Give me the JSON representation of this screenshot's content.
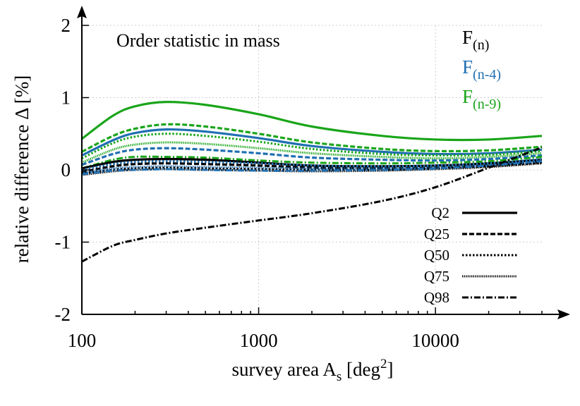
{
  "chart_data": {
    "type": "line",
    "title": "",
    "annotation": "Order statistic in mass",
    "xlabel": {
      "text": "survey area A",
      "sub": "s",
      "tail": " [deg",
      "sup": "2",
      "end": "]"
    },
    "ylabel": "relative difference Δ [%]",
    "xscale": "log",
    "xlim": [
      100,
      40000
    ],
    "ylim": [
      -2,
      2
    ],
    "x_ticks": [
      {
        "value": 100,
        "label": "100"
      },
      {
        "value": 1000,
        "label": "1000"
      },
      {
        "value": 10000,
        "label": "10000"
      }
    ],
    "y_ticks": [
      {
        "value": -2,
        "label": "-2"
      },
      {
        "value": -1,
        "label": "-1"
      },
      {
        "value": 0,
        "label": "0"
      },
      {
        "value": 1,
        "label": "1"
      },
      {
        "value": 2,
        "label": "2"
      }
    ],
    "grid": true,
    "colors": {
      "F(n)": "#000000",
      "F(n-4)": "#1f6fb2",
      "F(n-9)": "#1aa51a"
    },
    "color_legend": [
      {
        "base": "F",
        "sub": "(n)",
        "color": "#000000"
      },
      {
        "base": "F",
        "sub": "(n-4)",
        "color": "#1f6fb2"
      },
      {
        "base": "F",
        "sub": "(n-9)",
        "color": "#1aa51a"
      }
    ],
    "style_legend": [
      {
        "label": "Q2",
        "dash": "solid"
      },
      {
        "label": "Q25",
        "dash": "dashed"
      },
      {
        "label": "Q50",
        "dash": "dotted"
      },
      {
        "label": "Q75",
        "dash": "fine-dotted"
      },
      {
        "label": "Q98",
        "dash": "dashdot"
      }
    ],
    "x": [
      100,
      150,
      200,
      300,
      500,
      1000,
      2000,
      5000,
      10000,
      20000,
      40000
    ],
    "series": [
      {
        "color_key": "F(n-9)",
        "style": "solid",
        "values": [
          0.43,
          0.75,
          0.88,
          0.94,
          0.9,
          0.77,
          0.6,
          0.47,
          0.42,
          0.42,
          0.47
        ]
      },
      {
        "color_key": "F(n-9)",
        "style": "dashed",
        "values": [
          0.25,
          0.47,
          0.57,
          0.63,
          0.6,
          0.5,
          0.38,
          0.29,
          0.26,
          0.27,
          0.32
        ]
      },
      {
        "color_key": "F(n-4)",
        "style": "solid",
        "values": [
          0.2,
          0.41,
          0.51,
          0.56,
          0.53,
          0.44,
          0.33,
          0.25,
          0.22,
          0.23,
          0.28
        ]
      },
      {
        "color_key": "F(n-9)",
        "style": "dotted",
        "values": [
          0.16,
          0.37,
          0.46,
          0.5,
          0.47,
          0.39,
          0.29,
          0.22,
          0.2,
          0.21,
          0.26
        ]
      },
      {
        "color_key": "F(n-9)",
        "style": "fine-dotted",
        "values": [
          0.1,
          0.28,
          0.35,
          0.38,
          0.36,
          0.3,
          0.23,
          0.18,
          0.16,
          0.18,
          0.23
        ]
      },
      {
        "color_key": "F(n-4)",
        "style": "dashed",
        "values": [
          0.07,
          0.22,
          0.28,
          0.3,
          0.28,
          0.23,
          0.17,
          0.14,
          0.13,
          0.15,
          0.2
        ]
      },
      {
        "color_key": "F(n-9)",
        "style": "dashdot",
        "values": [
          0.02,
          0.14,
          0.18,
          0.18,
          0.17,
          0.13,
          0.1,
          0.09,
          0.1,
          0.12,
          0.18
        ]
      },
      {
        "color_key": "F(n)",
        "style": "solid",
        "values": [
          0.02,
          0.11,
          0.14,
          0.15,
          0.14,
          0.1,
          0.06,
          0.05,
          0.06,
          0.09,
          0.14
        ]
      },
      {
        "color_key": "F(n-4)",
        "style": "dotted",
        "values": [
          0.0,
          0.08,
          0.11,
          0.12,
          0.11,
          0.09,
          0.06,
          0.05,
          0.06,
          0.09,
          0.15
        ]
      },
      {
        "color_key": "F(n)",
        "style": "dashed",
        "values": [
          -0.03,
          0.05,
          0.08,
          0.09,
          0.08,
          0.06,
          0.03,
          0.02,
          0.03,
          0.06,
          0.11
        ]
      },
      {
        "color_key": "F(n-4)",
        "style": "fine-dotted",
        "values": [
          -0.04,
          0.02,
          0.04,
          0.05,
          0.04,
          0.03,
          0.02,
          0.02,
          0.03,
          0.06,
          0.12
        ]
      },
      {
        "color_key": "F(n)",
        "style": "dotted",
        "values": [
          -0.05,
          0.0,
          0.02,
          0.03,
          0.02,
          0.01,
          0.0,
          0.0,
          0.02,
          0.05,
          0.1
        ]
      },
      {
        "color_key": "F(n)",
        "style": "fine-dotted",
        "values": [
          -0.07,
          -0.02,
          0.0,
          0.01,
          0.0,
          -0.01,
          -0.02,
          -0.01,
          0.01,
          0.04,
          0.09
        ]
      },
      {
        "color_key": "F(n-4)",
        "style": "dashdot",
        "values": [
          -0.06,
          -0.01,
          0.0,
          0.01,
          0.0,
          -0.01,
          -0.01,
          0.0,
          0.02,
          0.06,
          0.12
        ]
      },
      {
        "color_key": "F(n)",
        "style": "dashdot",
        "values": [
          -1.27,
          -1.05,
          -0.97,
          -0.88,
          -0.8,
          -0.7,
          -0.6,
          -0.43,
          -0.24,
          0.03,
          0.31
        ]
      }
    ]
  }
}
